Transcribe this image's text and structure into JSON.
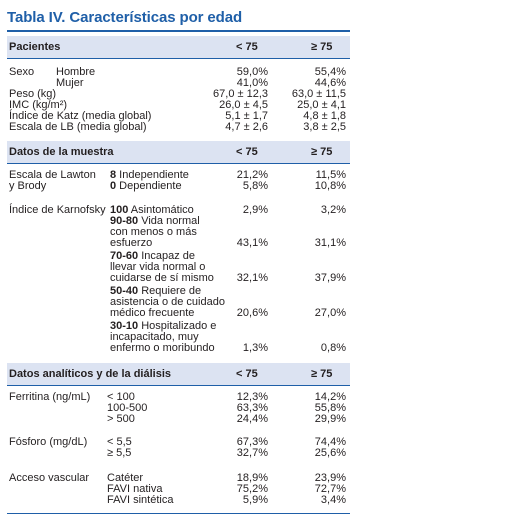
{
  "title": "Tabla IV.  Características por edad",
  "sections": [
    {
      "label": "Pacientes",
      "col1": "< 75",
      "col2": "≥ 75"
    },
    {
      "label": "Datos de la muestra",
      "col1": "< 75",
      "col2": "≥ 75"
    },
    {
      "label": "Datos analíticos y de la diálisis",
      "col1": "< 75",
      "col2": "≥ 75"
    }
  ],
  "pacientes": {
    "sexo": "Sexo",
    "hombre": "Hombre",
    "hombre_v1": "59,0%",
    "hombre_v2": "55,4%",
    "mujer": "Mujer",
    "mujer_v1": "41,0%",
    "mujer_v2": "44,6%",
    "peso": "Peso (kg)",
    "peso_v1": "67,0 ± 12,3",
    "peso_v2": "63,0 ± 11,5",
    "imc": "IMC (kg/m²)",
    "imc_v1": "26,0 ± 4,5",
    "imc_v2": "25,0 ± 4,1",
    "katz": "Índice de Katz (media global)",
    "katz_v1": "5,1 ± 1,7",
    "katz_v2": "4,8 ± 1,8",
    "lb": "Escala de LB (media global)",
    "lb_v1": "4,7 ± 2,6",
    "lb_v2": "3,8 ± 2,5"
  },
  "muestra": {
    "lawton_1": "Escala de Lawton",
    "lawton_2": "y Brody",
    "l8_num": "8",
    "l8_txt": " Independiente",
    "l8_v1": "21,2%",
    "l8_v2": "11,5%",
    "l0_num": "0",
    "l0_txt": " Dependiente",
    "l0_v1": "5,8%",
    "l0_v2": "10,8%",
    "karnofsky": "Índice de Karnofsky",
    "k100_num": "100",
    "k100_txt": " Asintomático",
    "k100_v1": "2,9%",
    "k100_v2": "3,2%",
    "k90_num": "90-80",
    "k90_txt": " Vida normal",
    "k90_l2": "con menos o más",
    "k90_l3": "esfuerzo",
    "k90_v1": "43,1%",
    "k90_v2": "31,1%",
    "k70_num": "70-60",
    "k70_txt": " Incapaz de",
    "k70_l2": "llevar vida normal o",
    "k70_l3": "cuidarse de sí mismo",
    "k70_v1": "32,1%",
    "k70_v2": "37,9%",
    "k50_num": "50-40",
    "k50_txt": " Requiere de",
    "k50_l2": "asistencia o de cuidado",
    "k50_l3": "médico frecuente",
    "k50_v1": "20,6%",
    "k50_v2": "27,0%",
    "k30_num": "30-10",
    "k30_txt": " Hospitalizado e",
    "k30_l2": "incapacitado, muy",
    "k30_l3": "enfermo o moribundo",
    "k30_v1": "1,3%",
    "k30_v2": "0,8%"
  },
  "analiticos": {
    "ferritina": "Ferritina (ng/mL)",
    "f1": "< 100",
    "f1_v1": "12,3%",
    "f1_v2": "14,2%",
    "f2": "100-500",
    "f2_v1": "63,3%",
    "f2_v2": "55,8%",
    "f3": "> 500",
    "f3_v1": "24,4%",
    "f3_v2": "29,9%",
    "fosforo": "Fósforo (mg/dL)",
    "p1": "< 5,5",
    "p1_v1": "67,3%",
    "p1_v2": "74,4%",
    "p2": "≥ 5,5",
    "p2_v1": "32,7%",
    "p2_v2": "25,6%",
    "acceso": "Acceso vascular",
    "a1": "Catéter",
    "a1_v1": "18,9%",
    "a1_v2": "23,9%",
    "a2": "FAVI nativa",
    "a2_v1": "75,2%",
    "a2_v2": "72,7%",
    "a3": "FAVI sintética",
    "a3_v1": "5,9%",
    "a3_v2": "3,4%"
  }
}
